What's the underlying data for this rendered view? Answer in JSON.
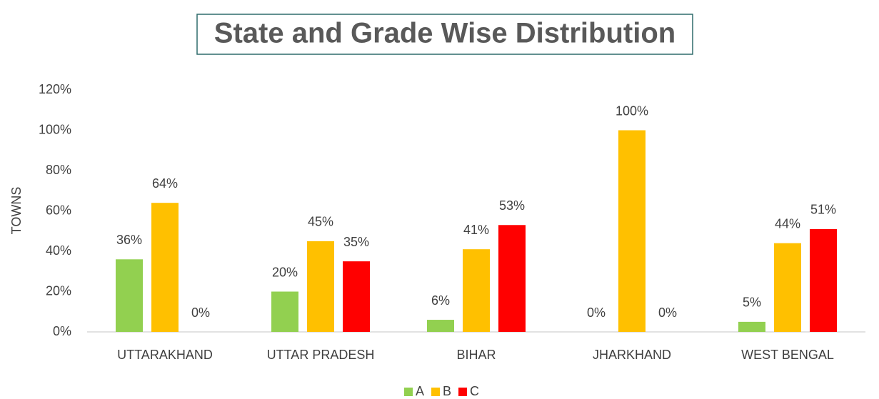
{
  "chart_data": {
    "type": "bar",
    "title": "State and Grade Wise Distribution",
    "y_label": "TOWNS",
    "categories": [
      "UTTARAKHAND",
      "UTTAR PRADESH",
      "BIHAR",
      "JHARKHAND",
      "WEST BENGAL"
    ],
    "series": [
      {
        "name": "A",
        "color": "#92d050",
        "values": [
          36,
          20,
          6,
          0,
          5
        ],
        "value_labels": [
          "36%",
          "20%",
          "6%",
          "0%",
          "5%"
        ]
      },
      {
        "name": "B",
        "color": "#ffc000",
        "values": [
          64,
          45,
          41,
          100,
          44
        ],
        "value_labels": [
          "64%",
          "45%",
          "41%",
          "100%",
          "44%"
        ]
      },
      {
        "name": "C",
        "color": "#ff0000",
        "values": [
          0,
          35,
          53,
          0,
          51
        ],
        "value_labels": [
          "0%",
          "35%",
          "53%",
          "0%",
          "51%"
        ]
      }
    ],
    "ylim": [
      0,
      120
    ],
    "yticks": [
      {
        "value": 0,
        "label": "0%"
      },
      {
        "value": 20,
        "label": "20%"
      },
      {
        "value": 40,
        "label": "40%"
      },
      {
        "value": 60,
        "label": "60%"
      },
      {
        "value": 80,
        "label": "80%"
      },
      {
        "value": 100,
        "label": "100%"
      },
      {
        "value": 120,
        "label": "120%"
      }
    ],
    "grid": false,
    "legend": "bottom"
  }
}
